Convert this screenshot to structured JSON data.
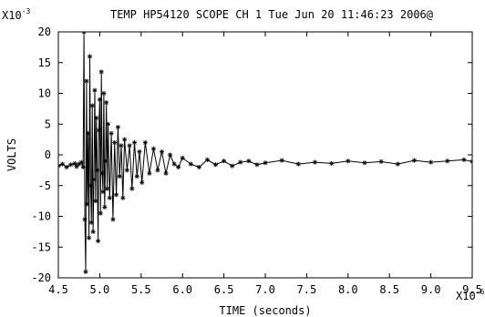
{
  "chart_data": {
    "type": "line",
    "title": "TEMP HP54120 SCOPE CH 1 Tue Jun 20 11:46:23 2006@",
    "xlabel": "TIME (seconds)",
    "ylabel": "VOLTS",
    "x_multiplier": "X10",
    "x_multiplier_exp": "-6",
    "y_multiplier": "X10",
    "y_multiplier_exp": "-3",
    "xlim": [
      4.5,
      9.5
    ],
    "ylim": [
      -20,
      20
    ],
    "x_ticks": [
      4.5,
      5.0,
      5.5,
      6.0,
      6.5,
      7.0,
      7.5,
      8.0,
      8.5,
      9.0,
      9.5
    ],
    "x_tick_labels": [
      "4.5",
      "5.0",
      "5.5",
      "6.0",
      "6.5",
      "7.0",
      "7.5",
      "8.0",
      "8.5",
      "9.0",
      "9.5"
    ],
    "y_ticks": [
      20,
      15,
      10,
      5,
      0,
      -5,
      -10,
      -15,
      -20
    ],
    "y_tick_labels": [
      "20",
      "15",
      "10",
      "5",
      "0",
      "-5",
      "-10",
      "-15",
      "-20"
    ],
    "grid": false,
    "marker": "star",
    "color": "#000000",
    "series": [
      {
        "x": [
          4.5,
          4.55,
          4.6,
          4.65,
          4.7,
          4.72,
          4.75,
          4.78,
          4.8,
          4.81,
          4.82,
          4.83,
          4.84,
          4.85,
          4.86,
          4.87,
          4.88,
          4.89,
          4.9,
          4.91,
          4.92,
          4.93,
          4.94,
          4.95,
          4.96,
          4.97,
          4.98,
          4.99,
          5.0,
          5.01,
          5.02,
          5.03,
          5.04,
          5.05,
          5.06,
          5.07,
          5.08,
          5.09,
          5.1,
          5.12,
          5.14,
          5.16,
          5.18,
          5.2,
          5.22,
          5.24,
          5.26,
          5.28,
          5.3,
          5.33,
          5.36,
          5.39,
          5.42,
          5.45,
          5.48,
          5.51,
          5.55,
          5.6,
          5.65,
          5.7,
          5.75,
          5.8,
          5.85,
          5.9,
          5.95,
          6.0,
          6.1,
          6.2,
          6.3,
          6.4,
          6.5,
          6.6,
          6.7,
          6.8,
          6.9,
          7.0,
          7.2,
          7.4,
          7.6,
          7.8,
          8.0,
          8.2,
          8.4,
          8.6,
          8.8,
          9.0,
          9.2,
          9.4,
          9.5
        ],
        "y": [
          -1.8,
          -1.5,
          -2.0,
          -1.6,
          -1.4,
          -1.9,
          -1.5,
          -1.2,
          -2.0,
          20.0,
          -10.5,
          -19.0,
          12.0,
          -8.0,
          3.5,
          -13.5,
          16.0,
          -5.0,
          -11.0,
          8.0,
          -12.5,
          -4.0,
          10.5,
          -7.5,
          6.0,
          -2.5,
          -14.0,
          4.0,
          9.0,
          -9.5,
          13.5,
          -3.0,
          -6.0,
          10.0,
          -8.5,
          -1.0,
          8.5,
          -5.5,
          5.0,
          -7.0,
          3.5,
          -10.5,
          2.0,
          -6.5,
          4.5,
          -3.5,
          1.5,
          -7.0,
          2.5,
          -2.5,
          1.5,
          -5.5,
          2.0,
          -3.5,
          0.5,
          -4.5,
          2.0,
          -3.0,
          1.0,
          -2.5,
          0.5,
          -3.0,
          0.0,
          -1.5,
          -2.0,
          -0.5,
          -1.5,
          -2.0,
          -0.8,
          -1.6,
          -1.0,
          -1.8,
          -1.2,
          -1.0,
          -1.6,
          -1.3,
          -0.9,
          -1.5,
          -1.2,
          -1.4,
          -1.0,
          -1.3,
          -1.1,
          -1.5,
          -0.9,
          -1.2,
          -1.0,
          -0.8,
          -1.1
        ]
      }
    ]
  }
}
